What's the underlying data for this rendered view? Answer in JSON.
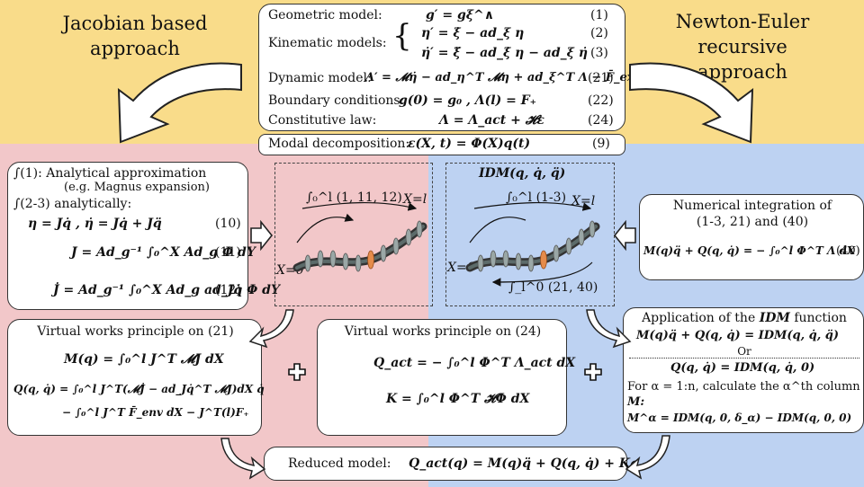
{
  "titles": {
    "left": "Jacobian based approach",
    "right_line1": "Newton-Euler recursive",
    "right_line2": "approach"
  },
  "central_box": {
    "geometric_label": "Geometric model:",
    "geometric_eq": "g′ = gξ^∧",
    "geometric_num": "(1)",
    "kinematic_label": "Kinematic models:",
    "kinematic_eq1": "η′ = ξ̇ − ad_ξ η",
    "kinematic_num1": "(2)",
    "kinematic_eq2": "η̇′ = ξ̈ − ad_ξ̇ η − ad_ξ η̇",
    "kinematic_num2": "(3)",
    "dynamic_label": "Dynamic model:",
    "dynamic_eq": "Λ′ = 𝓜η̇ − ad_η^T 𝓜η + ad_ξ^T Λ − F̄_ext",
    "dynamic_num": "(21)",
    "boundary_label": "Boundary conditions:",
    "boundary_eq": "g(0) = g₀ ,  Λ(l) = F₊",
    "boundary_num": "(22)",
    "constitutive_label": "Constitutive law:",
    "constitutive_eq": "Λ = Λ_act + 𝓗ε",
    "constitutive_num": "(24)"
  },
  "modal_box": {
    "label": "Modal decomposition:",
    "eq": "ε(X, t) = Φ(X)q(t)",
    "num": "(9)"
  },
  "left_top_box": {
    "line1": "∫(1): Analytical approximation",
    "line2": "(e.g. Magnus expansion)",
    "line3": "∫(2-3) analytically:",
    "eq10": "η = Jq̇    ,    η̇ = Jq̇ + Jq̈",
    "num10": "(10)",
    "eq11": "J = Ad_g⁻¹ ∫₀^X Ad_g Φ dY",
    "num11": "(11)",
    "eq12": "J̇ = Ad_g⁻¹ ∫₀^X Ad_g ad_Jq̇ Φ dY",
    "num12": "(12)"
  },
  "left_robot": {
    "integral_label": "∫₀^l (1, 11, 12)",
    "x_end": "X=l",
    "x_start": "X=0"
  },
  "right_robot": {
    "title": "IDM(q, q̇, q̈)",
    "integral_fwd": "∫₀^l (1-3)",
    "x_end": "X=l",
    "x_start": "X=0",
    "integral_back": "∫_l^0 (21, 40)"
  },
  "right_top_box": {
    "line1": "Numerical integration of",
    "line2": "(1-3, 21) and (40)",
    "eq": "M(q)q̈ + Q(q, q̇) = − ∫₀^l Φ^T Λ dX",
    "num": "(40)"
  },
  "left_bottom_box": {
    "title": "Virtual works principle on (21)",
    "eq_m": "M(q) = ∫₀^l J^T 𝓜J dX",
    "eq_q1": "Q(q, q̇) = ∫₀^l J^T(𝓜J̇ − ad_Jq̇^T 𝓜J)dX q̇",
    "eq_q2": "− ∫₀^l J^T F̄_env dX − J^T(l)F₊"
  },
  "middle_bottom_box": {
    "title": "Virtual works principle on (24)",
    "eq_q": "Q_act = − ∫₀^l Φ^T Λ_act dX",
    "eq_k": "K = ∫₀^l Φ^T 𝓗Φ dX"
  },
  "right_bottom_box": {
    "title_prefix": "Application of the",
    "title_idm": "IDM",
    "title_suffix": "function",
    "eq1": "M(q)q̈ + Q(q, q̇) = IDM(q, q̇, q̈)",
    "or": "Or",
    "eq2": "Q(q, q̇) = IDM(q, q̇, 0)",
    "line_for": "For α = 1:n, calculate the α^th column of",
    "line_m": "M:",
    "eq3": "M^α = IDM(q, 0, δ_α) − IDM(q, 0, 0)"
  },
  "reduced_box": {
    "label": "Reduced model:",
    "eq": "Q_act(q) = M(q)q̈ + Q(q, q̇) + Kq"
  },
  "colors": {
    "top_band": "#f9dc8a",
    "left_band": "#f2c7c9",
    "right_band": "#bdd2f2",
    "robot_disk": "#9aa7a6",
    "robot_orange": "#e58b4a"
  }
}
